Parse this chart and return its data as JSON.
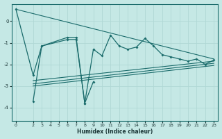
{
  "xlabel": "Humidex (Indice chaleur)",
  "background_color": "#c5e8e5",
  "grid_color": "#b0d8d5",
  "line_color": "#1a6b6b",
  "xlim": [
    -0.5,
    23.5
  ],
  "ylim": [
    -4.6,
    0.8
  ],
  "yticks": [
    0,
    -1,
    -2,
    -3,
    -4
  ],
  "xticks": [
    0,
    2,
    3,
    4,
    5,
    6,
    7,
    8,
    9,
    10,
    11,
    12,
    13,
    14,
    15,
    16,
    17,
    18,
    19,
    20,
    21,
    22,
    23
  ],
  "series1_x": [
    0,
    2,
    3,
    6,
    7,
    8,
    9,
    10,
    11,
    12,
    13,
    14,
    15,
    16,
    17,
    18,
    19,
    20,
    21,
    22,
    23
  ],
  "series1_y": [
    0.55,
    -2.5,
    -1.15,
    -0.75,
    -0.75,
    -3.8,
    -1.3,
    -1.6,
    -0.65,
    -1.15,
    -1.3,
    -1.2,
    -0.8,
    -1.15,
    -1.55,
    -1.65,
    -1.75,
    -1.85,
    -1.75,
    -2.0,
    -1.8
  ],
  "series2_x": [
    2,
    3,
    6,
    7,
    8,
    9
  ],
  "series2_y": [
    -3.7,
    -1.15,
    -0.85,
    -0.85,
    -3.8,
    -2.8
  ],
  "tline1_x": [
    0,
    23
  ],
  "tline1_y": [
    0.55,
    -1.75
  ],
  "tline2_x": [
    2,
    23
  ],
  "tline2_y": [
    -2.75,
    -1.85
  ],
  "tline3_x": [
    2,
    23
  ],
  "tline3_y": [
    -2.9,
    -1.95
  ],
  "tline4_x": [
    2,
    23
  ],
  "tline4_y": [
    -3.0,
    -2.05
  ]
}
